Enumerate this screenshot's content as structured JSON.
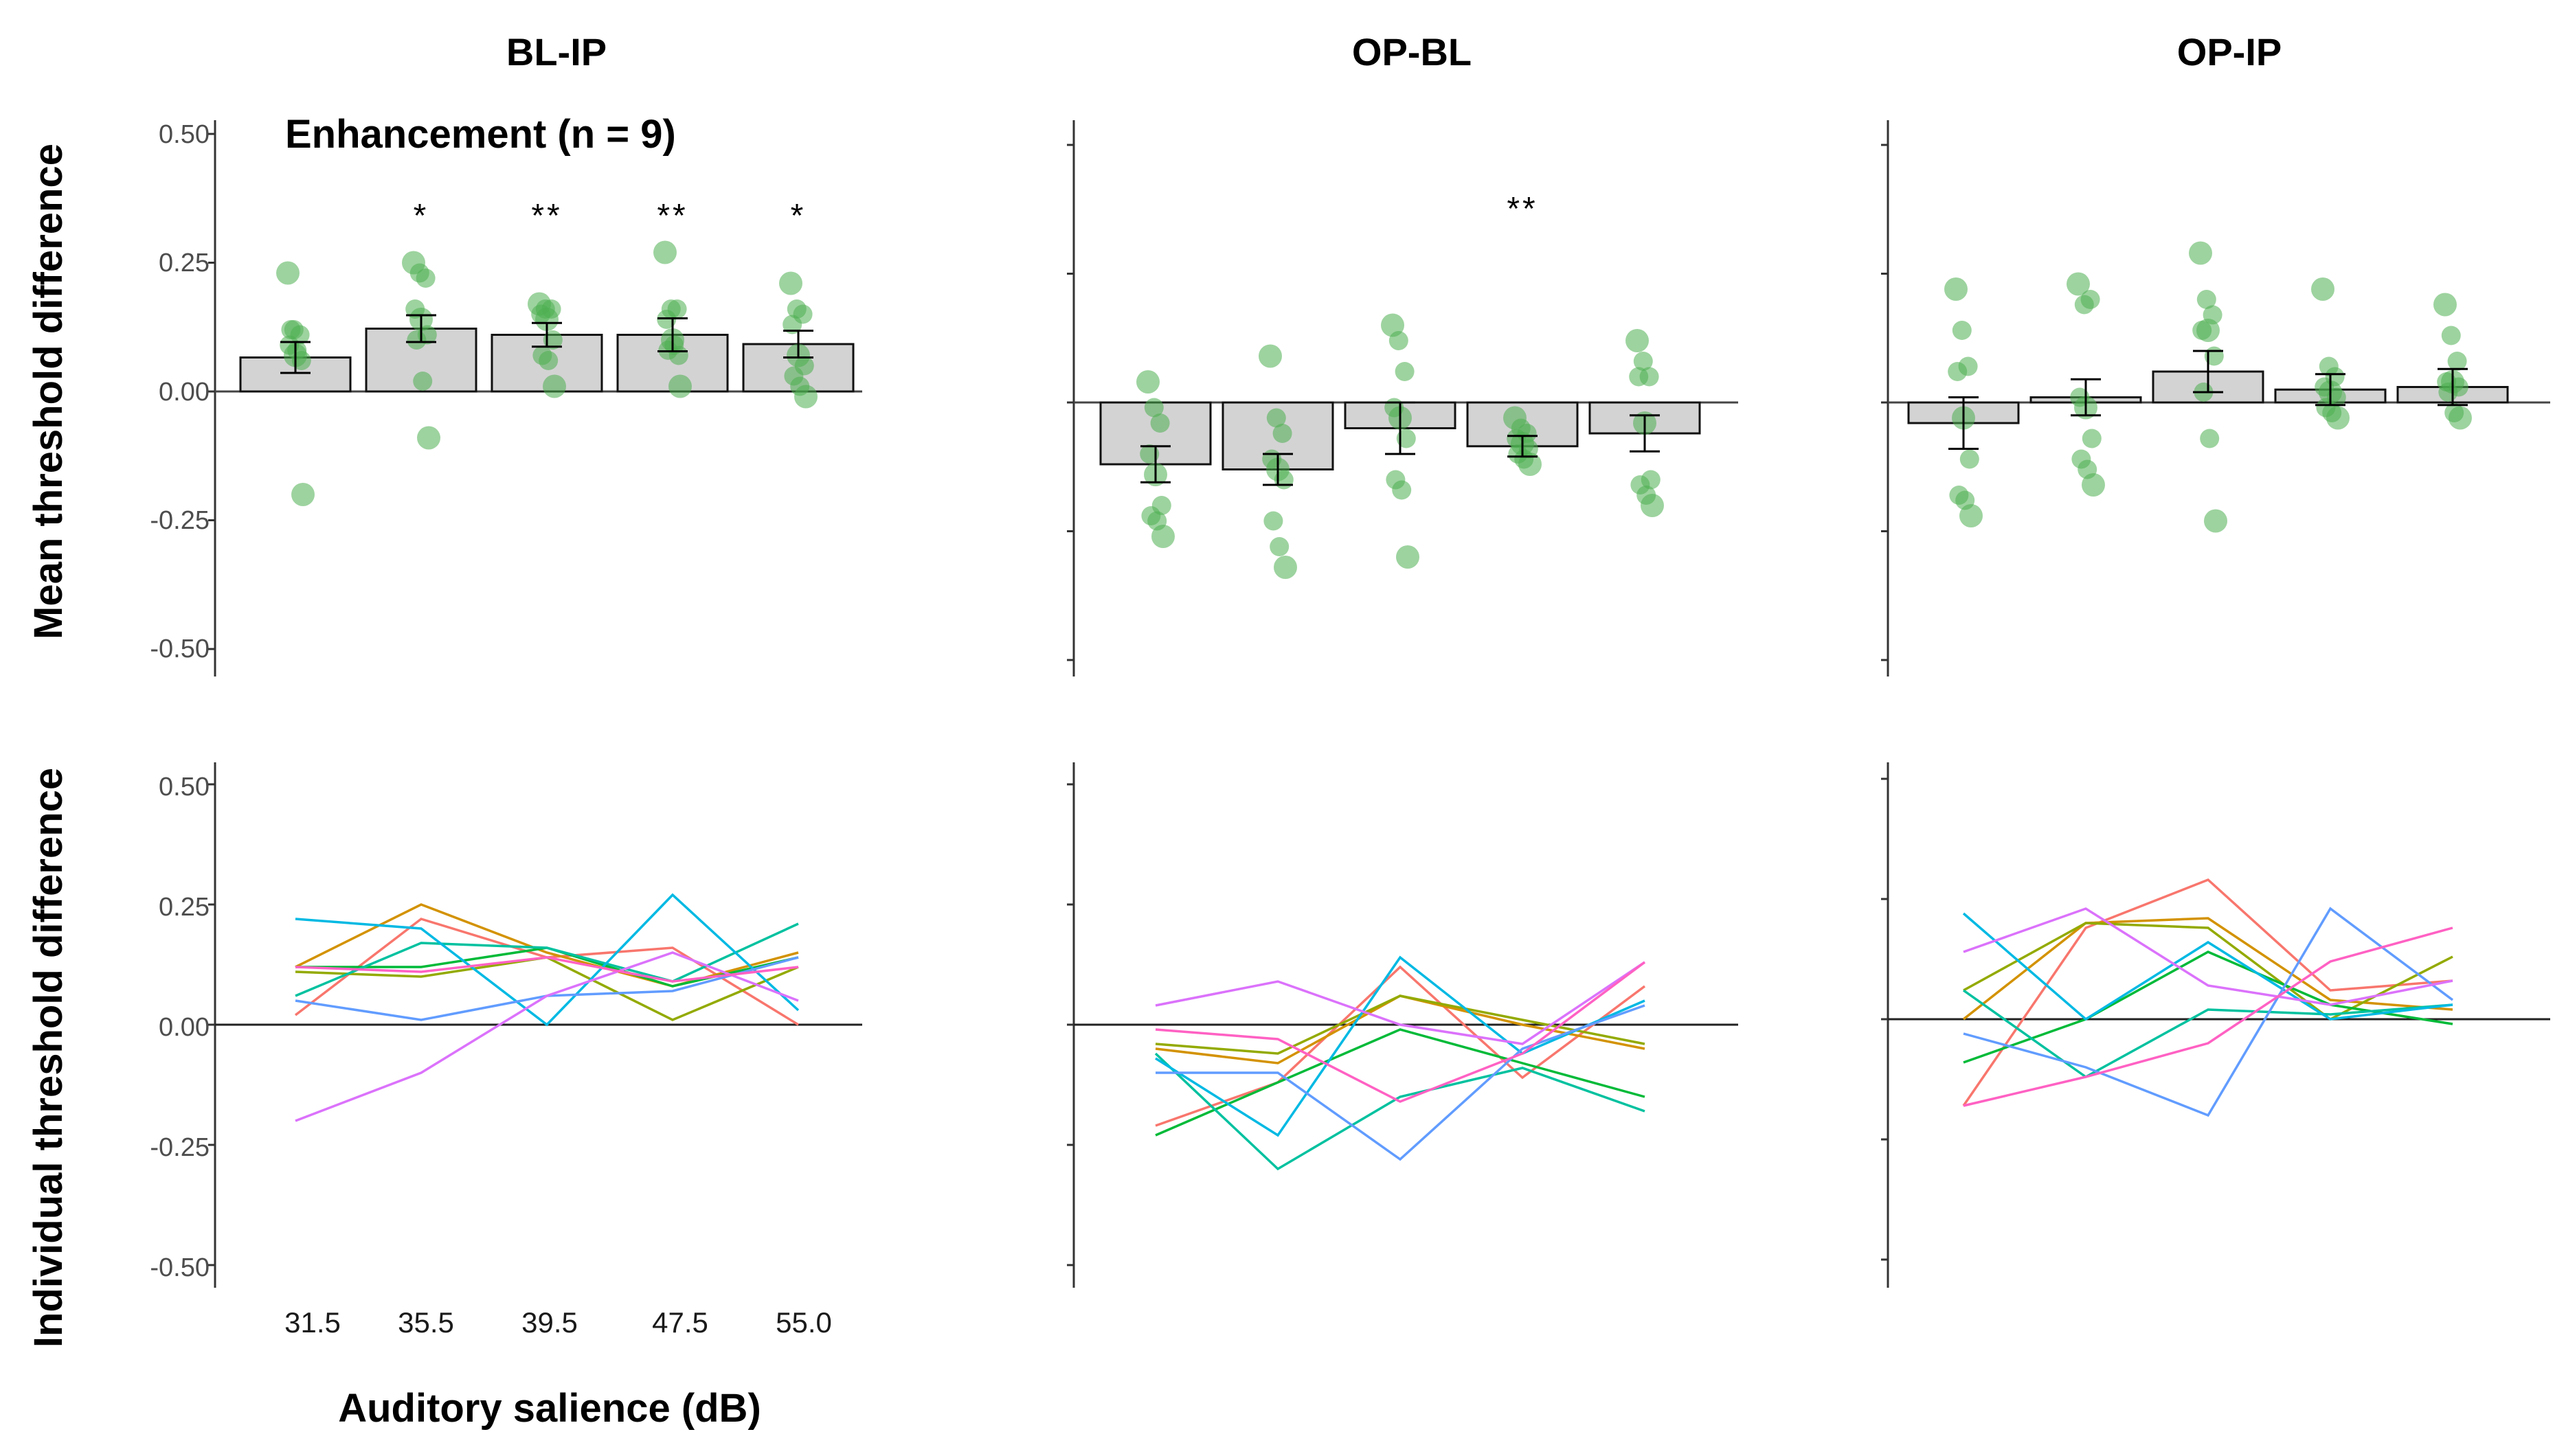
{
  "chart_data": {
    "type": "bar",
    "subtitle": "Enhancement (n = 9)",
    "xlabel": "Auditory salience (dB)",
    "categories": [
      "31.5",
      "35.5",
      "39.5",
      "47.5",
      "55.0"
    ],
    "row_labels": [
      "Mean threshold difference",
      "Individual threshold difference"
    ],
    "yticks": [
      "0.50",
      "0.25",
      "0.00",
      "-0.25",
      "-0.50"
    ],
    "ylim": [
      -0.5,
      0.5
    ],
    "colors": {
      "bar_fill": "#d3d3d3",
      "point": "#4caf50",
      "lines": [
        "#f8766d",
        "#d39200",
        "#93aa00",
        "#00ba38",
        "#00c19f",
        "#00b9e3",
        "#619cff",
        "#db72fb",
        "#ff61c3"
      ]
    },
    "panels": [
      {
        "title": "BL-IP",
        "means": [
          0.066,
          0.122,
          0.11,
          0.11,
          0.092
        ],
        "se": [
          0.03,
          0.026,
          0.023,
          0.032,
          0.026
        ],
        "significance": [
          "",
          "*",
          "**",
          "**",
          "*"
        ],
        "points": [
          [
            0.23,
            0.12,
            0.11,
            0.09,
            0.07,
            0.06,
            0.12,
            0.08,
            -0.2
          ],
          [
            0.25,
            0.23,
            0.22,
            0.16,
            0.14,
            0.11,
            0.1,
            0.02,
            -0.09
          ],
          [
            0.17,
            0.16,
            0.16,
            0.15,
            0.14,
            0.1,
            0.07,
            0.06,
            0.01
          ],
          [
            0.27,
            0.16,
            0.16,
            0.14,
            0.1,
            0.07,
            0.08,
            0.09,
            0.01
          ],
          [
            0.21,
            0.16,
            0.15,
            0.13,
            0.07,
            0.05,
            0.03,
            0.01,
            -0.01
          ]
        ]
      },
      {
        "title": "OP-BL",
        "means": [
          -0.12,
          -0.13,
          -0.05,
          -0.085,
          -0.06
        ],
        "se": [
          0.035,
          0.03,
          0.05,
          0.02,
          0.035
        ],
        "significance": [
          "",
          "",
          "",
          "**",
          ""
        ],
        "points": [
          [
            0.04,
            -0.01,
            -0.04,
            -0.1,
            -0.14,
            -0.2,
            -0.22,
            -0.23,
            -0.26
          ],
          [
            0.09,
            -0.03,
            -0.06,
            -0.11,
            -0.13,
            -0.15,
            -0.23,
            -0.28,
            -0.32
          ],
          [
            0.15,
            0.12,
            0.06,
            -0.01,
            -0.03,
            -0.07,
            -0.15,
            -0.17,
            -0.3
          ],
          [
            -0.03,
            -0.05,
            -0.06,
            -0.07,
            -0.08,
            -0.09,
            -0.1,
            -0.11,
            -0.12
          ],
          [
            0.12,
            0.08,
            0.05,
            0.05,
            -0.04,
            -0.15,
            -0.16,
            -0.18,
            -0.2
          ]
        ]
      },
      {
        "title": "OP-IP",
        "means": [
          -0.04,
          0.01,
          0.06,
          0.025,
          0.03
        ],
        "se": [
          0.05,
          0.035,
          0.04,
          0.03,
          0.035
        ],
        "significance": [
          "",
          "",
          "",
          "",
          ""
        ],
        "points": [
          [
            0.22,
            0.14,
            0.07,
            0.06,
            -0.03,
            -0.11,
            -0.18,
            -0.19,
            -0.22
          ],
          [
            0.23,
            0.19,
            0.2,
            0.01,
            -0.01,
            -0.07,
            -0.11,
            -0.13,
            -0.16
          ],
          [
            0.29,
            0.2,
            0.17,
            0.14,
            0.14,
            0.09,
            0.02,
            -0.07,
            -0.23
          ],
          [
            0.22,
            0.07,
            0.05,
            0.03,
            0.02,
            0.01,
            -0.01,
            -0.02,
            -0.03
          ],
          [
            0.19,
            0.13,
            0.08,
            0.04,
            0.04,
            0.03,
            0.02,
            -0.02,
            -0.03
          ]
        ]
      }
    ],
    "individuals": [
      [
        [
          0.02,
          0.22,
          0.14,
          0.16,
          0.0
        ],
        [
          -0.21,
          -0.12,
          0.12,
          -0.11,
          0.08
        ],
        [
          -0.18,
          0.19,
          0.29,
          0.06,
          0.08
        ]
      ],
      [
        [
          0.12,
          0.25,
          0.15,
          0.08,
          0.15
        ],
        [
          -0.05,
          -0.08,
          0.06,
          0.0,
          -0.05
        ],
        [
          0.0,
          0.2,
          0.21,
          0.04,
          0.02
        ]
      ],
      [
        [
          0.11,
          0.1,
          0.14,
          0.01,
          0.12
        ],
        [
          -0.04,
          -0.06,
          0.06,
          0.01,
          -0.04
        ],
        [
          0.06,
          0.2,
          0.19,
          0.0,
          0.13
        ]
      ],
      [
        [
          0.12,
          0.12,
          0.16,
          0.08,
          0.14
        ],
        [
          -0.23,
          -0.12,
          -0.01,
          -0.08,
          -0.15
        ],
        [
          -0.09,
          0.0,
          0.14,
          0.03,
          -0.01
        ]
      ],
      [
        [
          0.06,
          0.17,
          0.16,
          0.09,
          0.21
        ],
        [
          -0.06,
          -0.3,
          -0.15,
          -0.09,
          -0.18
        ],
        [
          0.06,
          -0.12,
          0.02,
          0.01,
          0.03
        ]
      ],
      [
        [
          0.22,
          0.2,
          0.0,
          0.27,
          0.03
        ],
        [
          -0.07,
          -0.23,
          0.14,
          -0.06,
          0.05
        ],
        [
          0.22,
          0.0,
          0.16,
          0.0,
          0.03
        ]
      ],
      [
        [
          0.05,
          0.01,
          0.06,
          0.07,
          0.14
        ],
        [
          -0.1,
          -0.1,
          -0.28,
          -0.05,
          0.04
        ],
        [
          -0.03,
          -0.1,
          -0.2,
          0.23,
          0.04
        ]
      ],
      [
        [
          -0.2,
          -0.1,
          0.06,
          0.15,
          0.05
        ],
        [
          0.04,
          0.09,
          0.0,
          -0.04,
          0.13
        ],
        [
          0.14,
          0.23,
          0.07,
          0.03,
          0.08
        ]
      ],
      [
        [
          0.12,
          0.11,
          0.14,
          0.09,
          0.12
        ],
        [
          -0.01,
          -0.03,
          -0.16,
          -0.06,
          0.13
        ],
        [
          -0.18,
          -0.12,
          -0.05,
          0.12,
          0.19
        ]
      ]
    ]
  }
}
